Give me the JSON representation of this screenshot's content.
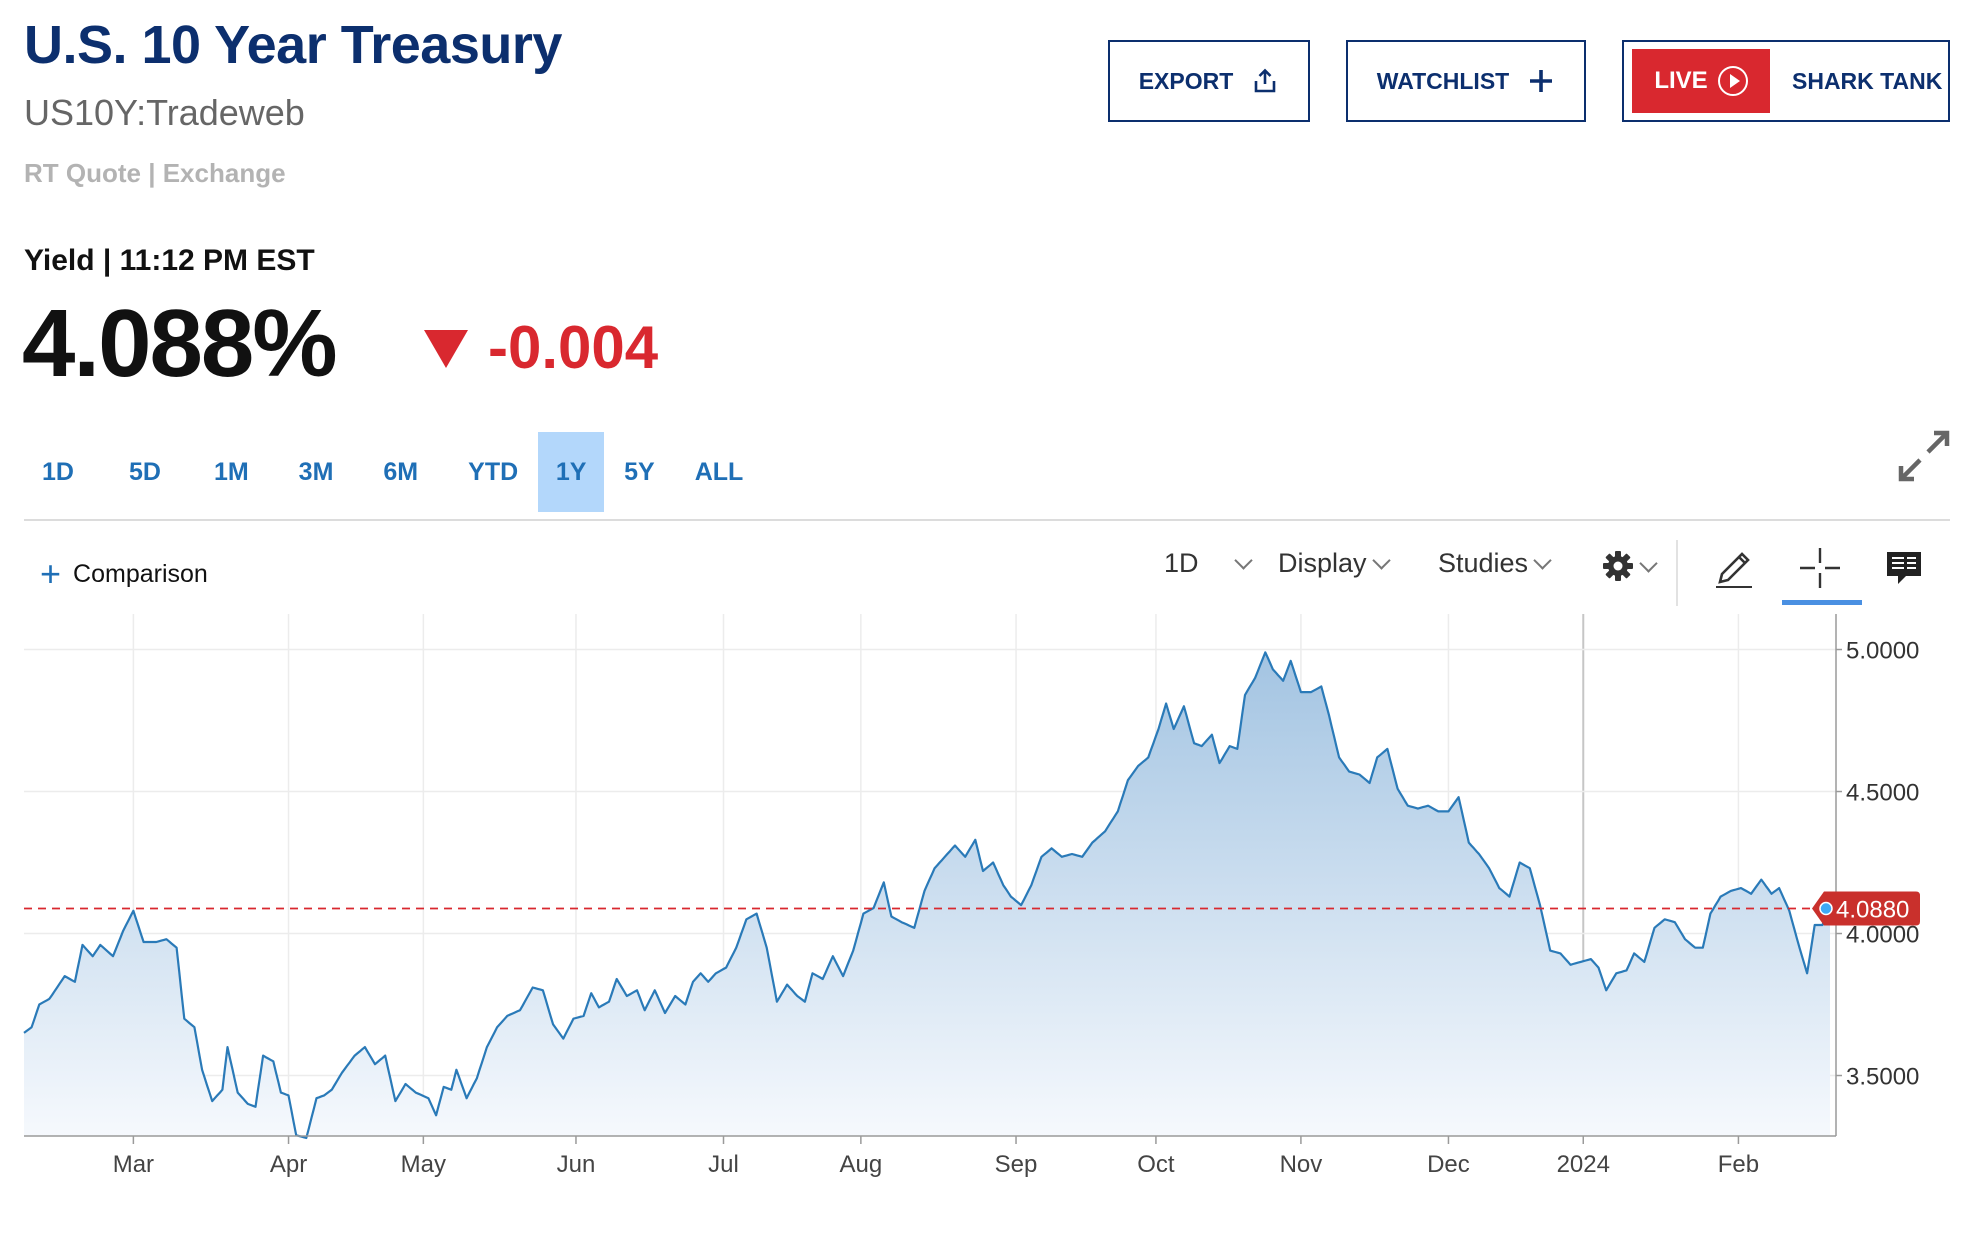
{
  "header": {
    "title": "U.S. 10 Year Treasury",
    "symbol": "US10Y:Tradeweb",
    "quote_source": "RT Quote | Exchange",
    "yield_label": "Yield | 11:12 PM EST",
    "price": "4.088%",
    "change": "-0.004"
  },
  "buttons": {
    "export": "EXPORT",
    "watchlist": "WATCHLIST",
    "live": "LIVE",
    "shark_tank": "SHARK TANK"
  },
  "ranges": [
    {
      "label": "1D",
      "active": false
    },
    {
      "label": "5D",
      "active": false
    },
    {
      "label": "1M",
      "active": false
    },
    {
      "label": "3M",
      "active": false
    },
    {
      "label": "6M",
      "active": false
    },
    {
      "label": "YTD",
      "active": false
    },
    {
      "label": "1Y",
      "active": true
    },
    {
      "label": "5Y",
      "active": false
    },
    {
      "label": "ALL",
      "active": false
    }
  ],
  "toolbar": {
    "comparison": "Comparison",
    "interval": "1D",
    "display": "Display",
    "studies": "Studies"
  },
  "colors": {
    "brand_navy": "#0c2f6e",
    "negative_red": "#d9282f",
    "line_blue": "#2a7ab8",
    "range_active_bg": "#b3d7fb"
  },
  "icons": [
    "share-icon",
    "plus-icon",
    "play-circle-icon",
    "expand-icon",
    "gear-icon",
    "pencil-icon",
    "crosshair-icon",
    "news-icon"
  ],
  "chart_data": {
    "type": "area",
    "x_tick_labels": [
      "Mar",
      "Apr",
      "May",
      "Jun",
      "Jul",
      "Aug",
      "Sep",
      "Oct",
      "Nov",
      "Dec",
      "2024",
      "Feb"
    ],
    "x_tick_index": [
      43,
      104,
      157,
      217,
      275,
      329,
      390,
      445,
      502,
      560,
      613,
      674
    ],
    "y_ticks": [
      3.5,
      4.0,
      4.5,
      5.0
    ],
    "y_tick_labels": [
      "3.5000",
      "4.0000",
      "4.5000",
      "5.0000"
    ],
    "ylim": [
      3.29,
      5.05
    ],
    "current_value": 4.088,
    "current_label": "4.0880",
    "anchors": [
      [
        0,
        3.65
      ],
      [
        3,
        3.67
      ],
      [
        6,
        3.75
      ],
      [
        10,
        3.77
      ],
      [
        16,
        3.85
      ],
      [
        20,
        3.83
      ],
      [
        23,
        3.96
      ],
      [
        27,
        3.92
      ],
      [
        30,
        3.96
      ],
      [
        35,
        3.92
      ],
      [
        39,
        4.01
      ],
      [
        43,
        4.08
      ],
      [
        47,
        3.97
      ],
      [
        52,
        3.97
      ],
      [
        56,
        3.98
      ],
      [
        60,
        3.95
      ],
      [
        63,
        3.7
      ],
      [
        67,
        3.67
      ],
      [
        70,
        3.52
      ],
      [
        74,
        3.41
      ],
      [
        78,
        3.45
      ],
      [
        80,
        3.6
      ],
      [
        84,
        3.44
      ],
      [
        88,
        3.4
      ],
      [
        91,
        3.39
      ],
      [
        94,
        3.57
      ],
      [
        98,
        3.55
      ],
      [
        101,
        3.44
      ],
      [
        104,
        3.43
      ],
      [
        107,
        3.29
      ],
      [
        111,
        3.28
      ],
      [
        115,
        3.42
      ],
      [
        118,
        3.43
      ],
      [
        121,
        3.45
      ],
      [
        125,
        3.51
      ],
      [
        130,
        3.57
      ],
      [
        134,
        3.6
      ],
      [
        138,
        3.54
      ],
      [
        142,
        3.57
      ],
      [
        146,
        3.41
      ],
      [
        150,
        3.47
      ],
      [
        154,
        3.44
      ],
      [
        159,
        3.42
      ],
      [
        162,
        3.36
      ],
      [
        165,
        3.46
      ],
      [
        168,
        3.45
      ],
      [
        170,
        3.52
      ],
      [
        174,
        3.42
      ],
      [
        178,
        3.49
      ],
      [
        182,
        3.6
      ],
      [
        186,
        3.67
      ],
      [
        190,
        3.71
      ],
      [
        195,
        3.73
      ],
      [
        200,
        3.81
      ],
      [
        204,
        3.8
      ],
      [
        208,
        3.68
      ],
      [
        212,
        3.63
      ],
      [
        216,
        3.7
      ],
      [
        220,
        3.71
      ],
      [
        223,
        3.79
      ],
      [
        226,
        3.74
      ],
      [
        230,
        3.76
      ],
      [
        233,
        3.84
      ],
      [
        237,
        3.78
      ],
      [
        241,
        3.8
      ],
      [
        244,
        3.73
      ],
      [
        248,
        3.8
      ],
      [
        252,
        3.72
      ],
      [
        256,
        3.78
      ],
      [
        260,
        3.75
      ],
      [
        263,
        3.83
      ],
      [
        266,
        3.86
      ],
      [
        269,
        3.83
      ],
      [
        272,
        3.86
      ],
      [
        276,
        3.88
      ],
      [
        280,
        3.95
      ],
      [
        284,
        4.05
      ],
      [
        288,
        4.07
      ],
      [
        292,
        3.95
      ],
      [
        296,
        3.76
      ],
      [
        300,
        3.82
      ],
      [
        304,
        3.78
      ],
      [
        307,
        3.76
      ],
      [
        310,
        3.86
      ],
      [
        314,
        3.84
      ],
      [
        318,
        3.92
      ],
      [
        322,
        3.85
      ],
      [
        326,
        3.94
      ],
      [
        330,
        4.07
      ],
      [
        334,
        4.09
      ],
      [
        338,
        4.18
      ],
      [
        341,
        4.06
      ],
      [
        345,
        4.04
      ],
      [
        350,
        4.02
      ],
      [
        354,
        4.15
      ],
      [
        358,
        4.23
      ],
      [
        362,
        4.27
      ],
      [
        366,
        4.31
      ],
      [
        370,
        4.27
      ],
      [
        374,
        4.33
      ],
      [
        377,
        4.22
      ],
      [
        381,
        4.25
      ],
      [
        385,
        4.17
      ],
      [
        388,
        4.13
      ],
      [
        392,
        4.1
      ],
      [
        396,
        4.17
      ],
      [
        400,
        4.27
      ],
      [
        404,
        4.3
      ],
      [
        408,
        4.27
      ],
      [
        412,
        4.28
      ],
      [
        416,
        4.27
      ],
      [
        420,
        4.32
      ],
      [
        425,
        4.36
      ],
      [
        430,
        4.43
      ],
      [
        434,
        4.54
      ],
      [
        438,
        4.59
      ],
      [
        442,
        4.62
      ],
      [
        446,
        4.72
      ],
      [
        449,
        4.81
      ],
      [
        452,
        4.72
      ],
      [
        456,
        4.8
      ],
      [
        460,
        4.67
      ],
      [
        463,
        4.66
      ],
      [
        467,
        4.7
      ],
      [
        470,
        4.6
      ],
      [
        474,
        4.66
      ],
      [
        477,
        4.65
      ],
      [
        480,
        4.84
      ],
      [
        484,
        4.9
      ],
      [
        488,
        4.99
      ],
      [
        491,
        4.93
      ],
      [
        495,
        4.89
      ],
      [
        498,
        4.96
      ],
      [
        502,
        4.85
      ],
      [
        506,
        4.85
      ],
      [
        510,
        4.87
      ],
      [
        513,
        4.77
      ],
      [
        517,
        4.62
      ],
      [
        521,
        4.57
      ],
      [
        525,
        4.56
      ],
      [
        529,
        4.53
      ],
      [
        532,
        4.62
      ],
      [
        536,
        4.65
      ],
      [
        540,
        4.51
      ],
      [
        544,
        4.45
      ],
      [
        548,
        4.44
      ],
      [
        552,
        4.45
      ],
      [
        556,
        4.43
      ],
      [
        560,
        4.43
      ],
      [
        564,
        4.48
      ],
      [
        568,
        4.32
      ],
      [
        572,
        4.28
      ],
      [
        576,
        4.23
      ],
      [
        580,
        4.16
      ],
      [
        584,
        4.13
      ],
      [
        588,
        4.25
      ],
      [
        592,
        4.23
      ],
      [
        596,
        4.1
      ],
      [
        600,
        3.94
      ],
      [
        604,
        3.93
      ],
      [
        608,
        3.89
      ],
      [
        612,
        3.9
      ],
      [
        616,
        3.91
      ],
      [
        619,
        3.88
      ],
      [
        622,
        3.8
      ],
      [
        626,
        3.86
      ],
      [
        630,
        3.87
      ],
      [
        633,
        3.93
      ],
      [
        637,
        3.9
      ],
      [
        641,
        4.02
      ],
      [
        645,
        4.05
      ],
      [
        649,
        4.04
      ],
      [
        653,
        3.98
      ],
      [
        657,
        3.95
      ],
      [
        660,
        3.95
      ],
      [
        663,
        4.07
      ],
      [
        667,
        4.13
      ],
      [
        671,
        4.15
      ],
      [
        675,
        4.16
      ],
      [
        679,
        4.14
      ],
      [
        683,
        4.19
      ],
      [
        687,
        4.14
      ],
      [
        690,
        4.16
      ],
      [
        694,
        4.08
      ],
      [
        698,
        3.95
      ],
      [
        701,
        3.86
      ],
      [
        704,
        4.03
      ],
      [
        707,
        4.03
      ],
      [
        710,
        4.088
      ]
    ]
  }
}
